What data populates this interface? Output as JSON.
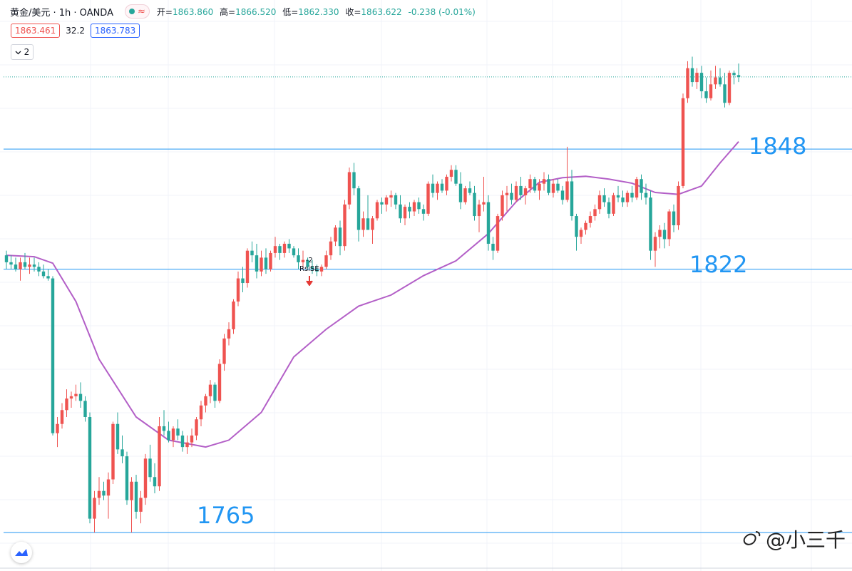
{
  "legend": {
    "symbol": "黄金/美元 · 1h · OANDA",
    "ohlc": [
      {
        "k": "开=",
        "v": "1863.860"
      },
      {
        "k": "高=",
        "v": "1866.520"
      },
      {
        "k": "低=",
        "v": "1862.330"
      },
      {
        "k": "收=",
        "v": "1863.622"
      },
      {
        "k": "",
        "v": "-0.238 (-0.01%)"
      }
    ],
    "bid": "1863.461",
    "spread": "32.2",
    "ask": "1863.783",
    "collapse_count": "2",
    "collapse_icon": "chevron-down-icon"
  },
  "signal": {
    "top": "-2",
    "name": "RsiSE"
  },
  "levels": [
    {
      "value": 1848,
      "label": "1848"
    },
    {
      "value": 1822,
      "label": "1822"
    },
    {
      "value": 1765,
      "label": "1765"
    }
  ],
  "watermark": "@小三千",
  "colors": {
    "up": "#ef5350",
    "down": "#26a69a",
    "ma": "#b35fc7",
    "level": "#2196f3",
    "grid": "#f0f3fa"
  },
  "chart_data": {
    "type": "candlestick",
    "title": "黄金/美元 · 1h · OANDA",
    "ylim": [
      1763,
      1871
    ],
    "current_price": 1863.622,
    "horizontal_levels": [
      1848,
      1822,
      1765
    ],
    "moving_average": [
      [
        0,
        1825.0
      ],
      [
        6,
        1824.7
      ],
      [
        10,
        1823.3
      ],
      [
        15,
        1815.0
      ],
      [
        20,
        1802.5
      ],
      [
        28,
        1790.0
      ],
      [
        35,
        1785.0
      ],
      [
        43,
        1783.5
      ],
      [
        48,
        1785.0
      ],
      [
        55,
        1791.0
      ],
      [
        62,
        1803.0
      ],
      [
        69,
        1809.0
      ],
      [
        76,
        1814.0
      ],
      [
        83,
        1816.4
      ],
      [
        90,
        1820.6
      ],
      [
        97,
        1823.8
      ],
      [
        104,
        1829.7
      ],
      [
        110,
        1836.6
      ],
      [
        115,
        1840.8
      ],
      [
        120,
        1841.8
      ],
      [
        125,
        1842.1
      ],
      [
        130,
        1841.5
      ],
      [
        135,
        1840.6
      ],
      [
        140,
        1838.6
      ],
      [
        145,
        1838.2
      ],
      [
        150,
        1840.0
      ],
      [
        154,
        1845.0
      ],
      [
        158,
        1849.6
      ]
    ],
    "candles": [
      [
        1825.0,
        1826.0,
        1822.0,
        1823.5
      ],
      [
        1823.5,
        1825.0,
        1822.0,
        1823.0
      ],
      [
        1823.0,
        1824.5,
        1821.5,
        1822.0
      ],
      [
        1822.0,
        1824.5,
        1819.5,
        1823.5
      ],
      [
        1823.5,
        1825.5,
        1822.0,
        1822.5
      ],
      [
        1822.5,
        1824.5,
        1821.0,
        1823.0
      ],
      [
        1823.0,
        1824.5,
        1821.5,
        1822.5
      ],
      [
        1822.5,
        1823.5,
        1820.5,
        1821.5
      ],
      [
        1821.5,
        1823.0,
        1820.0,
        1820.5
      ],
      [
        1820.5,
        1822.0,
        1819.5,
        1820.0
      ],
      [
        1820.0,
        1820.5,
        1786.0,
        1786.5
      ],
      [
        1786.5,
        1790.0,
        1783.5,
        1788.5
      ],
      [
        1788.5,
        1793.0,
        1787.5,
        1791.5
      ],
      [
        1791.5,
        1796.0,
        1790.0,
        1794.0
      ],
      [
        1794.0,
        1795.5,
        1792.0,
        1794.5
      ],
      [
        1794.5,
        1797.0,
        1793.5,
        1795.0
      ],
      [
        1795.0,
        1797.5,
        1792.0,
        1793.5
      ],
      [
        1793.5,
        1794.5,
        1789.0,
        1790.0
      ],
      [
        1790.0,
        1791.0,
        1767.0,
        1768.0
      ],
      [
        1768.0,
        1774.0,
        1765.0,
        1772.5
      ],
      [
        1772.5,
        1777.0,
        1771.0,
        1774.0
      ],
      [
        1774.0,
        1776.0,
        1772.0,
        1773.0
      ],
      [
        1773.0,
        1778.0,
        1768.0,
        1776.5
      ],
      [
        1776.5,
        1789.0,
        1775.5,
        1788.5
      ],
      [
        1788.5,
        1791.0,
        1782.0,
        1783.0
      ],
      [
        1783.0,
        1786.0,
        1780.0,
        1781.5
      ],
      [
        1781.5,
        1782.5,
        1771.0,
        1772.0
      ],
      [
        1772.0,
        1777.0,
        1765.0,
        1776.0
      ],
      [
        1776.0,
        1777.5,
        1768.0,
        1769.5
      ],
      [
        1769.5,
        1774.0,
        1767.0,
        1772.5
      ],
      [
        1772.5,
        1782.0,
        1771.0,
        1781.0
      ],
      [
        1781.0,
        1784.0,
        1776.0,
        1777.0
      ],
      [
        1777.0,
        1780.0,
        1773.5,
        1775.0
      ],
      [
        1775.0,
        1790.0,
        1774.0,
        1788.0
      ],
      [
        1788.0,
        1791.5,
        1786.0,
        1787.0
      ],
      [
        1787.0,
        1789.0,
        1784.5,
        1785.0
      ],
      [
        1785.0,
        1788.0,
        1783.5,
        1787.5
      ],
      [
        1787.5,
        1789.5,
        1785.0,
        1786.0
      ],
      [
        1786.0,
        1787.0,
        1782.5,
        1783.5
      ],
      [
        1783.5,
        1786.0,
        1782.0,
        1784.5
      ],
      [
        1784.5,
        1787.5,
        1783.5,
        1786.0
      ],
      [
        1786.0,
        1790.0,
        1785.0,
        1789.5
      ],
      [
        1789.5,
        1793.5,
        1788.0,
        1792.5
      ],
      [
        1792.5,
        1795.0,
        1791.0,
        1794.5
      ],
      [
        1794.5,
        1798.0,
        1793.0,
        1797.0
      ],
      [
        1797.0,
        1797.5,
        1792.0,
        1793.5
      ],
      [
        1793.5,
        1802.5,
        1793.0,
        1801.5
      ],
      [
        1801.5,
        1808.0,
        1800.0,
        1807.0
      ],
      [
        1807.0,
        1810.5,
        1805.5,
        1809.0
      ],
      [
        1809.0,
        1815.5,
        1808.0,
        1815.0
      ],
      [
        1815.0,
        1821.5,
        1814.0,
        1820.0
      ],
      [
        1820.0,
        1822.5,
        1817.0,
        1819.0
      ],
      [
        1819.0,
        1826.5,
        1818.0,
        1826.0
      ],
      [
        1826.0,
        1828.0,
        1823.5,
        1825.0
      ],
      [
        1825.0,
        1827.5,
        1820.0,
        1821.5
      ],
      [
        1821.5,
        1826.0,
        1820.5,
        1824.5
      ],
      [
        1824.5,
        1826.5,
        1821.0,
        1822.0
      ],
      [
        1822.0,
        1826.0,
        1821.5,
        1825.5
      ],
      [
        1825.5,
        1829.0,
        1824.5,
        1827.0
      ],
      [
        1827.0,
        1827.5,
        1824.0,
        1825.5
      ],
      [
        1825.5,
        1828.0,
        1824.5,
        1827.5
      ],
      [
        1827.5,
        1828.5,
        1825.5,
        1826.5
      ],
      [
        1826.5,
        1827.0,
        1824.5,
        1825.0
      ],
      [
        1825.0,
        1826.5,
        1822.0,
        1823.5
      ],
      [
        1823.5,
        1826.0,
        1822.0,
        1824.0
      ],
      [
        1824.0,
        1824.5,
        1822.0,
        1822.5
      ],
      [
        1822.5,
        1824.0,
        1821.0,
        1822.0
      ],
      [
        1822.0,
        1823.0,
        1820.5,
        1821.5
      ],
      [
        1821.5,
        1823.0,
        1820.5,
        1822.5
      ],
      [
        1822.5,
        1826.0,
        1822.0,
        1825.0
      ],
      [
        1825.0,
        1829.0,
        1824.0,
        1828.0
      ],
      [
        1828.0,
        1831.5,
        1827.0,
        1831.0
      ],
      [
        1831.0,
        1832.5,
        1825.0,
        1827.0
      ],
      [
        1827.0,
        1837.0,
        1826.0,
        1836.0
      ],
      [
        1836.0,
        1844.0,
        1835.0,
        1843.0
      ],
      [
        1843.0,
        1845.0,
        1838.0,
        1839.5
      ],
      [
        1839.5,
        1840.0,
        1828.0,
        1830.5
      ],
      [
        1830.5,
        1834.5,
        1829.0,
        1833.0
      ],
      [
        1833.0,
        1838.0,
        1830.5,
        1830.5
      ],
      [
        1830.5,
        1833.5,
        1827.5,
        1833.0
      ],
      [
        1833.0,
        1837.0,
        1832.5,
        1836.5
      ],
      [
        1836.5,
        1837.5,
        1834.0,
        1836.0
      ],
      [
        1836.0,
        1838.0,
        1834.5,
        1837.5
      ],
      [
        1837.5,
        1839.0,
        1835.5,
        1838.0
      ],
      [
        1838.0,
        1838.5,
        1835.0,
        1836.0
      ],
      [
        1836.0,
        1838.0,
        1832.0,
        1833.0
      ],
      [
        1833.0,
        1836.0,
        1831.5,
        1835.5
      ],
      [
        1835.5,
        1836.5,
        1833.0,
        1834.5
      ],
      [
        1834.5,
        1837.0,
        1833.5,
        1836.5
      ],
      [
        1836.5,
        1837.5,
        1834.0,
        1835.0
      ],
      [
        1835.0,
        1836.0,
        1832.5,
        1834.0
      ],
      [
        1834.0,
        1841.0,
        1833.5,
        1840.5
      ],
      [
        1840.5,
        1842.5,
        1837.5,
        1838.5
      ],
      [
        1838.5,
        1841.0,
        1837.0,
        1840.5
      ],
      [
        1840.5,
        1841.5,
        1838.5,
        1839.0
      ],
      [
        1839.0,
        1842.5,
        1838.0,
        1842.0
      ],
      [
        1842.0,
        1844.5,
        1841.0,
        1843.5
      ],
      [
        1843.5,
        1844.5,
        1840.0,
        1840.5
      ],
      [
        1840.5,
        1843.0,
        1835.0,
        1836.5
      ],
      [
        1836.5,
        1840.0,
        1836.0,
        1839.5
      ],
      [
        1839.5,
        1841.0,
        1838.0,
        1838.5
      ],
      [
        1838.5,
        1840.0,
        1832.5,
        1833.5
      ],
      [
        1833.5,
        1837.0,
        1830.0,
        1836.0
      ],
      [
        1836.0,
        1842.0,
        1834.5,
        1836.5
      ],
      [
        1836.5,
        1838.0,
        1826.0,
        1827.5
      ],
      [
        1827.5,
        1829.0,
        1824.0,
        1826.0
      ],
      [
        1826.0,
        1834.0,
        1825.5,
        1833.5
      ],
      [
        1833.5,
        1839.0,
        1832.5,
        1838.0
      ],
      [
        1838.0,
        1840.0,
        1834.5,
        1838.5
      ],
      [
        1838.5,
        1840.5,
        1836.0,
        1837.0
      ],
      [
        1837.0,
        1841.0,
        1836.5,
        1840.0
      ],
      [
        1840.0,
        1842.0,
        1837.0,
        1838.0
      ],
      [
        1838.0,
        1840.0,
        1836.0,
        1839.5
      ],
      [
        1839.5,
        1842.5,
        1838.5,
        1841.5
      ],
      [
        1841.5,
        1842.0,
        1838.5,
        1839.0
      ],
      [
        1839.0,
        1841.5,
        1837.0,
        1840.5
      ],
      [
        1840.5,
        1843.0,
        1839.0,
        1841.5
      ],
      [
        1841.5,
        1842.5,
        1838.0,
        1838.5
      ],
      [
        1838.5,
        1841.5,
        1837.5,
        1840.5
      ],
      [
        1840.5,
        1841.5,
        1838.5,
        1839.0
      ],
      [
        1839.0,
        1840.0,
        1836.0,
        1837.0
      ],
      [
        1837.0,
        1848.5,
        1836.5,
        1841.0
      ],
      [
        1841.0,
        1843.5,
        1832.5,
        1833.5
      ],
      [
        1833.5,
        1834.0,
        1826.0,
        1829.0
      ],
      [
        1829.0,
        1831.0,
        1827.5,
        1830.5
      ],
      [
        1830.5,
        1832.5,
        1829.5,
        1832.0
      ],
      [
        1832.0,
        1834.5,
        1831.0,
        1833.5
      ],
      [
        1833.5,
        1836.0,
        1832.5,
        1835.0
      ],
      [
        1835.0,
        1839.0,
        1834.0,
        1838.0
      ],
      [
        1838.0,
        1839.5,
        1835.5,
        1836.5
      ],
      [
        1836.5,
        1837.5,
        1833.0,
        1834.0
      ],
      [
        1834.0,
        1838.5,
        1833.5,
        1838.0
      ],
      [
        1838.0,
        1840.0,
        1836.5,
        1837.5
      ],
      [
        1837.5,
        1839.0,
        1835.5,
        1836.5
      ],
      [
        1836.5,
        1839.0,
        1835.5,
        1838.5
      ],
      [
        1838.5,
        1840.0,
        1836.5,
        1837.5
      ],
      [
        1837.5,
        1842.0,
        1837.0,
        1841.5
      ],
      [
        1841.5,
        1842.5,
        1837.0,
        1838.5
      ],
      [
        1838.5,
        1840.5,
        1836.0,
        1837.5
      ],
      [
        1837.5,
        1839.0,
        1824.0,
        1826.0
      ],
      [
        1826.0,
        1830.0,
        1822.5,
        1829.0
      ],
      [
        1829.0,
        1831.5,
        1826.5,
        1830.5
      ],
      [
        1830.5,
        1832.0,
        1826.5,
        1828.5
      ],
      [
        1828.5,
        1835.0,
        1827.0,
        1834.5
      ],
      [
        1834.5,
        1836.0,
        1830.0,
        1831.5
      ],
      [
        1831.5,
        1841.0,
        1830.5,
        1840.0
      ],
      [
        1840.0,
        1860.0,
        1839.5,
        1859.0
      ],
      [
        1859.0,
        1867.0,
        1858.0,
        1865.5
      ],
      [
        1865.5,
        1868.0,
        1861.5,
        1862.5
      ],
      [
        1862.5,
        1865.5,
        1861.0,
        1864.5
      ],
      [
        1864.5,
        1866.0,
        1859.0,
        1860.5
      ],
      [
        1860.5,
        1863.5,
        1858.0,
        1859.0
      ],
      [
        1859.0,
        1865.0,
        1858.5,
        1862.0
      ],
      [
        1862.0,
        1866.0,
        1861.0,
        1863.5
      ],
      [
        1863.5,
        1865.5,
        1861.5,
        1862.0
      ],
      [
        1862.0,
        1864.5,
        1857.0,
        1858.0
      ],
      [
        1858.0,
        1865.0,
        1857.5,
        1864.5
      ],
      [
        1864.5,
        1865.0,
        1862.0,
        1864.0
      ],
      [
        1864.0,
        1866.5,
        1862.5,
        1863.6
      ]
    ]
  }
}
